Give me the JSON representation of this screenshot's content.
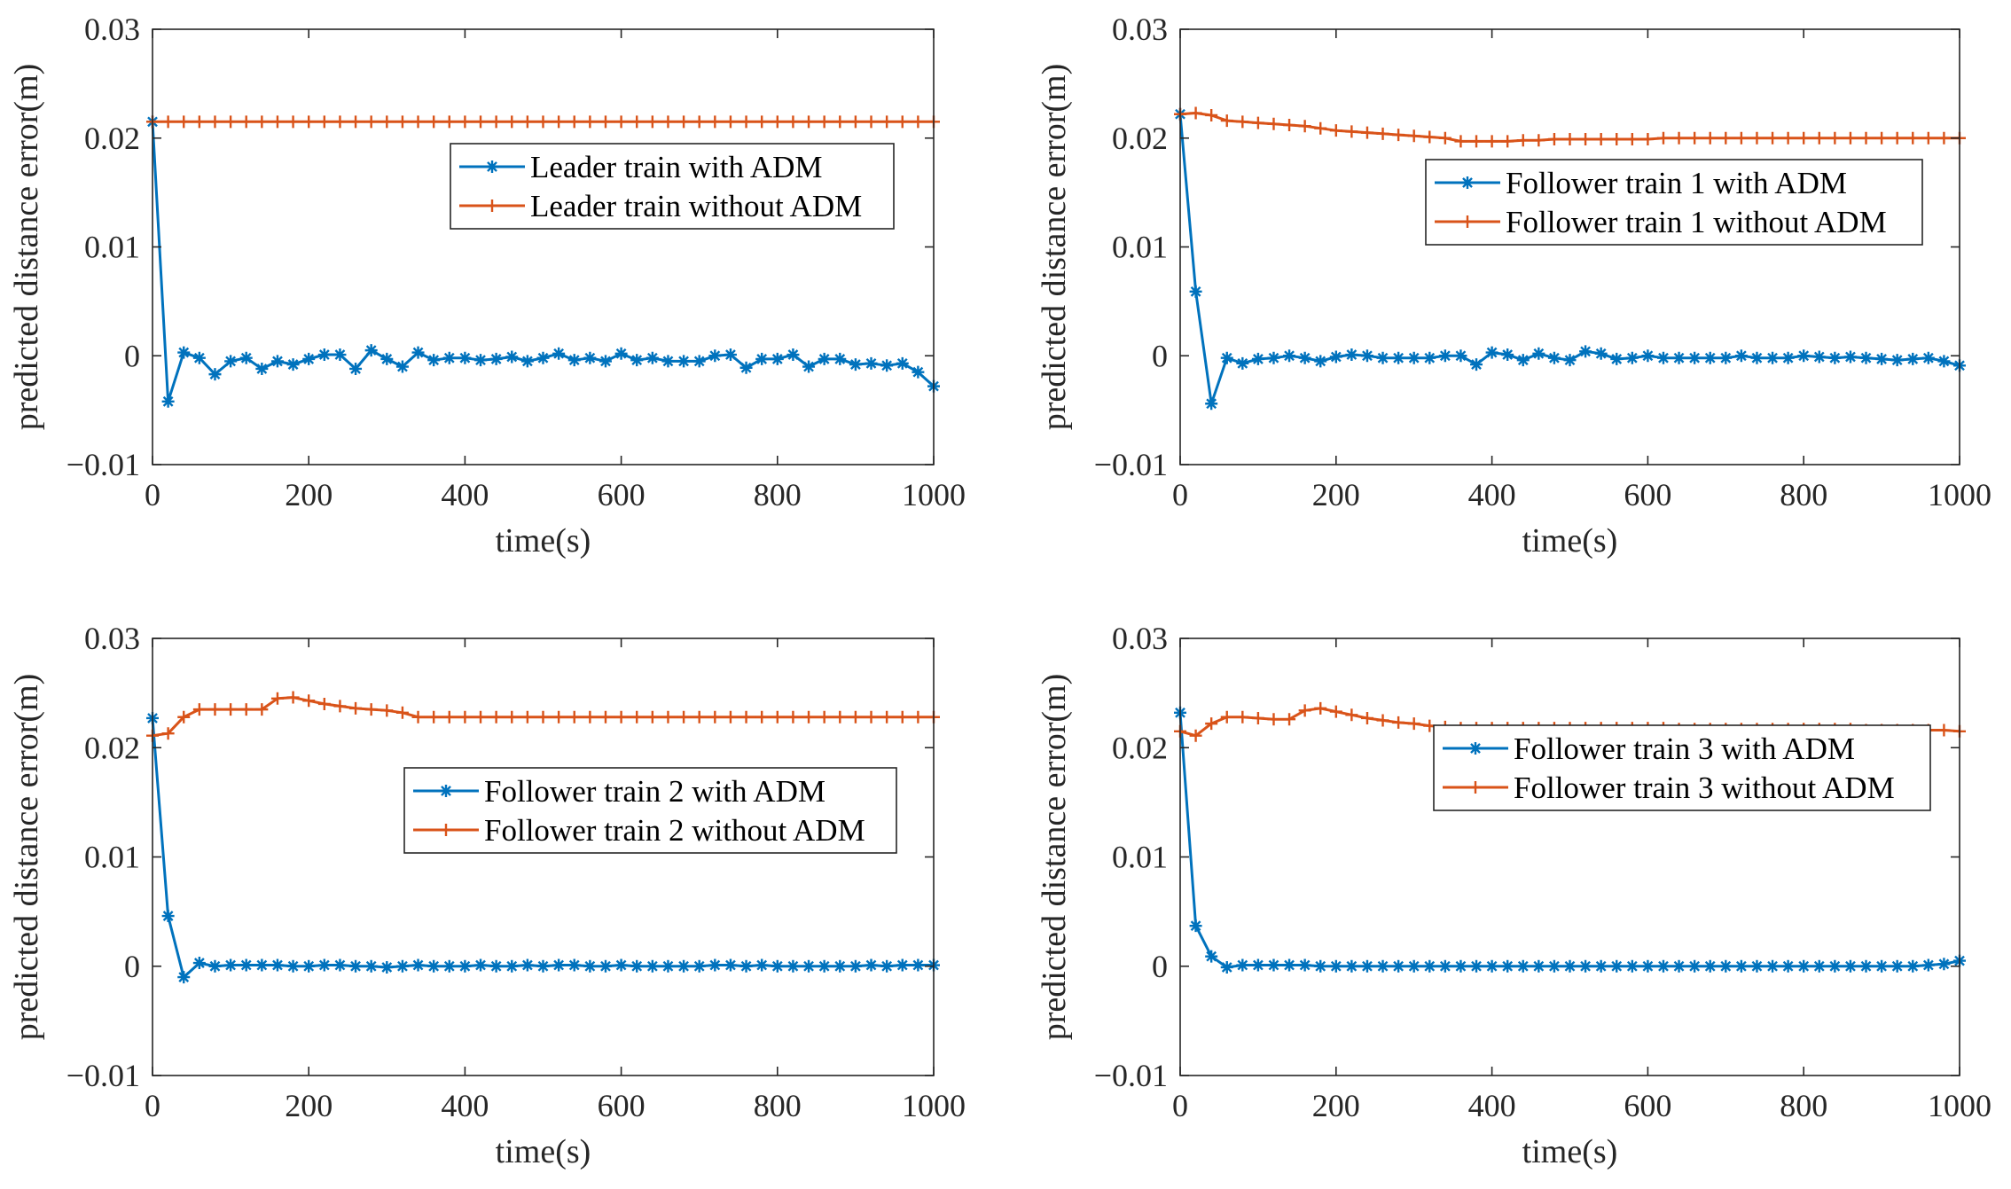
{
  "colors": {
    "with_adm": "#0072BD",
    "without_adm": "#D95319",
    "axis": "#262626"
  },
  "chart_data": [
    {
      "type": "line",
      "xlabel": "time(s)",
      "ylabel": "predicted distance error(m)",
      "xlim": [
        0,
        1000
      ],
      "ylim": [
        -0.01,
        0.03
      ],
      "xticks": [
        0,
        200,
        400,
        600,
        800,
        1000
      ],
      "xtick_labels": [
        "0",
        "200",
        "400",
        "600",
        "800",
        "1000"
      ],
      "yticks": [
        -0.01,
        0,
        0.01,
        0.02,
        0.03
      ],
      "ytick_labels": [
        "−0.01",
        "0",
        "0.01",
        "0.02",
        "0.03"
      ],
      "legend_position": "upper-right",
      "x": [
        0,
        20,
        40,
        60,
        80,
        100,
        120,
        140,
        160,
        180,
        200,
        220,
        240,
        260,
        280,
        300,
        320,
        340,
        360,
        380,
        400,
        420,
        440,
        460,
        480,
        500,
        520,
        540,
        560,
        580,
        600,
        620,
        640,
        660,
        680,
        700,
        720,
        740,
        760,
        780,
        800,
        820,
        840,
        860,
        880,
        900,
        920,
        940,
        960,
        980,
        1000
      ],
      "series": [
        {
          "name": "Leader train with ADM",
          "marker": "asterisk",
          "color": "#0072BD",
          "values": [
            0.0215,
            -0.0042,
            0.0003,
            -0.0002,
            -0.0017,
            -0.0005,
            -0.0002,
            -0.0012,
            -0.0005,
            -0.0008,
            -0.0003,
            0.0001,
            0.0001,
            -0.0012,
            0.0005,
            -0.0003,
            -0.001,
            0.0003,
            -0.0004,
            -0.0002,
            -0.0002,
            -0.0004,
            -0.0003,
            -0.0001,
            -0.0005,
            -0.0002,
            0.0002,
            -0.0004,
            -0.0002,
            -0.0005,
            0.0002,
            -0.0004,
            -0.0002,
            -0.0005,
            -0.0005,
            -0.0005,
            0.0,
            0.0001,
            -0.0011,
            -0.0003,
            -0.0003,
            0.0001,
            -0.001,
            -0.0003,
            -0.0003,
            -0.0008,
            -0.0007,
            -0.0009,
            -0.0007,
            -0.0015,
            -0.0028
          ]
        },
        {
          "name": "Leader train without ADM",
          "marker": "plus",
          "color": "#D95319",
          "values": [
            0.0215,
            0.0215,
            0.0215,
            0.0215,
            0.0215,
            0.0215,
            0.0215,
            0.0215,
            0.0215,
            0.0215,
            0.0215,
            0.0215,
            0.0215,
            0.0215,
            0.0215,
            0.0215,
            0.0215,
            0.0215,
            0.0215,
            0.0215,
            0.0215,
            0.0215,
            0.0215,
            0.0215,
            0.0215,
            0.0215,
            0.0215,
            0.0215,
            0.0215,
            0.0215,
            0.0215,
            0.0215,
            0.0215,
            0.0215,
            0.0215,
            0.0215,
            0.0215,
            0.0215,
            0.0215,
            0.0215,
            0.0215,
            0.0215,
            0.0215,
            0.0215,
            0.0215,
            0.0215,
            0.0215,
            0.0215,
            0.0215,
            0.0215,
            0.0215
          ]
        }
      ]
    },
    {
      "type": "line",
      "xlabel": "time(s)",
      "ylabel": "predicted distance error(m)",
      "xlim": [
        0,
        1000
      ],
      "ylim": [
        -0.01,
        0.03
      ],
      "xticks": [
        0,
        200,
        400,
        600,
        800,
        1000
      ],
      "xtick_labels": [
        "0",
        "200",
        "400",
        "600",
        "800",
        "1000"
      ],
      "yticks": [
        -0.01,
        0,
        0.01,
        0.02,
        0.03
      ],
      "ytick_labels": [
        "−0.01",
        "0",
        "0.01",
        "0.02",
        "0.03"
      ],
      "legend_position": "upper-right",
      "x": [
        0,
        20,
        40,
        60,
        80,
        100,
        120,
        140,
        160,
        180,
        200,
        220,
        240,
        260,
        280,
        300,
        320,
        340,
        360,
        380,
        400,
        420,
        440,
        460,
        480,
        500,
        520,
        540,
        560,
        580,
        600,
        620,
        640,
        660,
        680,
        700,
        720,
        740,
        760,
        780,
        800,
        820,
        840,
        860,
        880,
        900,
        920,
        940,
        960,
        980,
        1000
      ],
      "series": [
        {
          "name": "Follower train 1 with ADM",
          "marker": "asterisk",
          "color": "#0072BD",
          "values": [
            0.0222,
            0.0059,
            -0.0044,
            -0.0002,
            -0.0007,
            -0.0003,
            -0.0002,
            0.0,
            -0.0002,
            -0.0005,
            -0.0001,
            0.0001,
            0.0,
            -0.0002,
            -0.0002,
            -0.0002,
            -0.0002,
            0.0,
            0.0,
            -0.0008,
            0.0003,
            0.0001,
            -0.0004,
            0.0002,
            -0.0002,
            -0.0004,
            0.0004,
            0.0002,
            -0.0003,
            -0.0002,
            0.0,
            -0.0002,
            -0.0002,
            -0.0002,
            -0.0002,
            -0.0002,
            0.0,
            -0.0002,
            -0.0002,
            -0.0002,
            0.0,
            -0.0001,
            -0.0002,
            -0.0001,
            -0.0002,
            -0.0003,
            -0.0004,
            -0.0003,
            -0.0002,
            -0.0005,
            -0.0009
          ]
        },
        {
          "name": "Follower train 1 without ADM",
          "marker": "plus",
          "color": "#D95319",
          "values": [
            0.0222,
            0.0223,
            0.0221,
            0.0216,
            0.0215,
            0.0214,
            0.0213,
            0.0212,
            0.0211,
            0.0209,
            0.0207,
            0.0206,
            0.0205,
            0.0204,
            0.0203,
            0.0202,
            0.0201,
            0.02,
            0.0197,
            0.0197,
            0.0197,
            0.0197,
            0.0198,
            0.0198,
            0.0199,
            0.0199,
            0.0199,
            0.0199,
            0.0199,
            0.0199,
            0.0199,
            0.02,
            0.02,
            0.02,
            0.02,
            0.02,
            0.02,
            0.02,
            0.02,
            0.02,
            0.02,
            0.02,
            0.02,
            0.02,
            0.02,
            0.02,
            0.02,
            0.02,
            0.02,
            0.02,
            0.02
          ]
        }
      ]
    },
    {
      "type": "line",
      "xlabel": "time(s)",
      "ylabel": "predicted distance error(m)",
      "xlim": [
        0,
        1000
      ],
      "ylim": [
        -0.01,
        0.03
      ],
      "xticks": [
        0,
        200,
        400,
        600,
        800,
        1000
      ],
      "xtick_labels": [
        "0",
        "200",
        "400",
        "600",
        "800",
        "1000"
      ],
      "yticks": [
        -0.01,
        0,
        0.01,
        0.02,
        0.03
      ],
      "ytick_labels": [
        "−0.01",
        "0",
        "0.01",
        "0.02",
        "0.03"
      ],
      "legend_position": "center-right",
      "x": [
        0,
        20,
        40,
        60,
        80,
        100,
        120,
        140,
        160,
        180,
        200,
        220,
        240,
        260,
        280,
        300,
        320,
        340,
        360,
        380,
        400,
        420,
        440,
        460,
        480,
        500,
        520,
        540,
        560,
        580,
        600,
        620,
        640,
        660,
        680,
        700,
        720,
        740,
        760,
        780,
        800,
        820,
        840,
        860,
        880,
        900,
        920,
        940,
        960,
        980,
        1000
      ],
      "series": [
        {
          "name": "Follower train 2 with ADM",
          "marker": "asterisk",
          "color": "#0072BD",
          "values": [
            0.0227,
            0.0046,
            -0.001,
            0.0003,
            0.0,
            0.0001,
            0.0001,
            0.0001,
            0.0001,
            0.0,
            0.0,
            0.0001,
            0.0001,
            0.0,
            0.0,
            -0.0001,
            0.0,
            0.0001,
            0.0,
            0.0,
            0.0,
            0.0001,
            0.0,
            0.0,
            0.0001,
            0.0,
            0.0001,
            0.0001,
            0.0,
            0.0,
            0.0001,
            0.0,
            0.0,
            0.0,
            0.0,
            0.0,
            0.0001,
            0.0001,
            0.0,
            0.0001,
            0.0,
            0.0,
            0.0,
            0.0,
            0.0,
            0.0,
            0.0001,
            0.0,
            0.0001,
            0.0001,
            0.0001
          ]
        },
        {
          "name": "Follower train 2 without ADM",
          "marker": "plus",
          "color": "#D95319",
          "values": [
            0.0211,
            0.0213,
            0.0228,
            0.0235,
            0.0235,
            0.0235,
            0.0235,
            0.0235,
            0.0245,
            0.0246,
            0.0243,
            0.024,
            0.0238,
            0.0236,
            0.0235,
            0.0234,
            0.0232,
            0.0228,
            0.0228,
            0.0228,
            0.0228,
            0.0228,
            0.0228,
            0.0228,
            0.0228,
            0.0228,
            0.0228,
            0.0228,
            0.0228,
            0.0228,
            0.0228,
            0.0228,
            0.0228,
            0.0228,
            0.0228,
            0.0228,
            0.0228,
            0.0228,
            0.0228,
            0.0228,
            0.0228,
            0.0228,
            0.0228,
            0.0228,
            0.0228,
            0.0228,
            0.0228,
            0.0228,
            0.0228,
            0.0228,
            0.0228
          ]
        }
      ]
    },
    {
      "type": "line",
      "xlabel": "time(s)",
      "ylabel": "predicted distance error(m)",
      "xlim": [
        0,
        1000
      ],
      "ylim": [
        -0.01,
        0.03
      ],
      "xticks": [
        0,
        200,
        400,
        600,
        800,
        1000
      ],
      "xtick_labels": [
        "0",
        "200",
        "400",
        "600",
        "800",
        "1000"
      ],
      "yticks": [
        -0.01,
        0,
        0.01,
        0.02,
        0.03
      ],
      "ytick_labels": [
        "−0.01",
        "0",
        "0.01",
        "0.02",
        "0.03"
      ],
      "legend_position": "upper-right",
      "x": [
        0,
        20,
        40,
        60,
        80,
        100,
        120,
        140,
        160,
        180,
        200,
        220,
        240,
        260,
        280,
        300,
        320,
        340,
        360,
        380,
        400,
        420,
        440,
        460,
        480,
        500,
        520,
        540,
        560,
        580,
        600,
        620,
        640,
        660,
        680,
        700,
        720,
        740,
        760,
        780,
        800,
        820,
        840,
        860,
        880,
        900,
        920,
        940,
        960,
        980,
        1000
      ],
      "series": [
        {
          "name": "Follower train 3 with ADM",
          "marker": "asterisk",
          "color": "#0072BD",
          "values": [
            0.0232,
            0.0037,
            0.0009,
            -0.0001,
            0.0001,
            0.0001,
            0.0001,
            0.0001,
            0.0001,
            0.0,
            0.0,
            0.0,
            0.0,
            0.0,
            0.0,
            0.0,
            0.0,
            0.0,
            0.0,
            0.0,
            0.0,
            0.0,
            0.0,
            0.0,
            0.0,
            0.0,
            0.0,
            0.0,
            0.0,
            0.0,
            0.0,
            0.0,
            0.0,
            0.0,
            0.0,
            0.0,
            0.0,
            0.0,
            0.0,
            0.0,
            0.0,
            0.0,
            0.0,
            0.0,
            0.0,
            0.0,
            0.0,
            0.0,
            0.0001,
            0.0002,
            0.0005
          ]
        },
        {
          "name": "Follower train 3 without ADM",
          "marker": "plus",
          "color": "#D95319",
          "values": [
            0.0215,
            0.0211,
            0.0222,
            0.0228,
            0.0228,
            0.0227,
            0.0226,
            0.0226,
            0.0234,
            0.0236,
            0.0233,
            0.023,
            0.0227,
            0.0225,
            0.0223,
            0.0222,
            0.022,
            0.0219,
            0.0218,
            0.0218,
            0.0218,
            0.0218,
            0.0218,
            0.0218,
            0.0218,
            0.0218,
            0.0218,
            0.0218,
            0.0218,
            0.0218,
            0.0218,
            0.0218,
            0.0217,
            0.0217,
            0.0217,
            0.0217,
            0.0217,
            0.0217,
            0.0217,
            0.0217,
            0.0217,
            0.0217,
            0.0217,
            0.0217,
            0.0216,
            0.0216,
            0.0216,
            0.0216,
            0.0216,
            0.0216,
            0.0215
          ]
        }
      ]
    }
  ]
}
